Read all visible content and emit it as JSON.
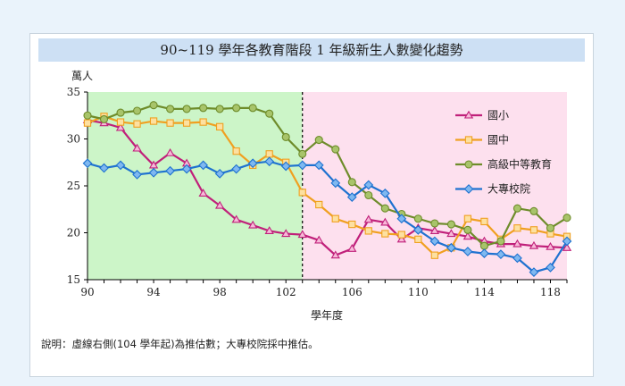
{
  "note": "說明：虛線右側(104 學年起)為推估數；大專校院採中推估。",
  "chart_data": {
    "type": "line",
    "title": "90~119 學年各教育階段 1 年級新生人數變化趨勢",
    "ylabel": "萬人",
    "xlabel": "學年度",
    "ylim": [
      15,
      35
    ],
    "xlim": [
      90,
      119
    ],
    "x_ticks": [
      90,
      94,
      98,
      102,
      106,
      110,
      114,
      118
    ],
    "y_ticks": [
      15,
      20,
      25,
      30,
      35
    ],
    "projection_start": 103,
    "region_colors": {
      "actual": "#ccf5c8",
      "projected": "#fde0ee"
    },
    "legend_position": "right",
    "x": [
      90,
      91,
      92,
      93,
      94,
      95,
      96,
      97,
      98,
      99,
      100,
      101,
      102,
      103,
      104,
      105,
      106,
      107,
      108,
      109,
      110,
      111,
      112,
      113,
      114,
      115,
      116,
      117,
      118,
      119
    ],
    "series": [
      {
        "name": "國小",
        "color": "#c0207a",
        "marker": "triangle",
        "values": [
          32.0,
          31.7,
          31.2,
          29.0,
          27.2,
          28.5,
          27.4,
          24.2,
          22.9,
          21.4,
          20.8,
          20.2,
          19.9,
          19.8,
          19.2,
          17.6,
          18.3,
          21.4,
          21.1,
          19.3,
          20.5,
          20.2,
          19.9,
          19.6,
          19.1,
          18.8,
          18.8,
          18.6,
          18.5,
          18.4
        ]
      },
      {
        "name": "國中",
        "color": "#f0a020",
        "marker": "square",
        "values": [
          31.7,
          32.4,
          31.8,
          31.6,
          31.9,
          31.7,
          31.7,
          31.8,
          31.3,
          28.7,
          27.2,
          28.4,
          27.5,
          24.3,
          23.0,
          21.5,
          20.9,
          20.2,
          19.9,
          19.8,
          19.3,
          17.6,
          18.4,
          21.5,
          21.2,
          19.3,
          20.5,
          20.3,
          19.9,
          19.6
        ]
      },
      {
        "name": "高級中等教育",
        "color": "#6e8c2a",
        "marker": "circle",
        "values": [
          32.5,
          32.1,
          32.8,
          33.0,
          33.6,
          33.2,
          33.2,
          33.3,
          33.2,
          33.3,
          33.3,
          32.7,
          30.2,
          28.4,
          29.9,
          28.9,
          25.4,
          24.0,
          22.6,
          22.0,
          21.5,
          21.0,
          20.9,
          20.3,
          18.6,
          19.1,
          22.6,
          22.3,
          20.5,
          21.6
        ]
      },
      {
        "name": "大專校院",
        "color": "#1e72d0",
        "marker": "diamond",
        "values": [
          27.4,
          26.9,
          27.2,
          26.2,
          26.4,
          26.6,
          26.8,
          27.2,
          26.3,
          26.8,
          27.4,
          27.6,
          27.1,
          27.2,
          27.2,
          25.3,
          23.8,
          25.1,
          24.2,
          21.5,
          20.3,
          19.1,
          18.4,
          18.0,
          17.8,
          17.7,
          17.3,
          15.8,
          16.3,
          19.1
        ]
      }
    ]
  }
}
